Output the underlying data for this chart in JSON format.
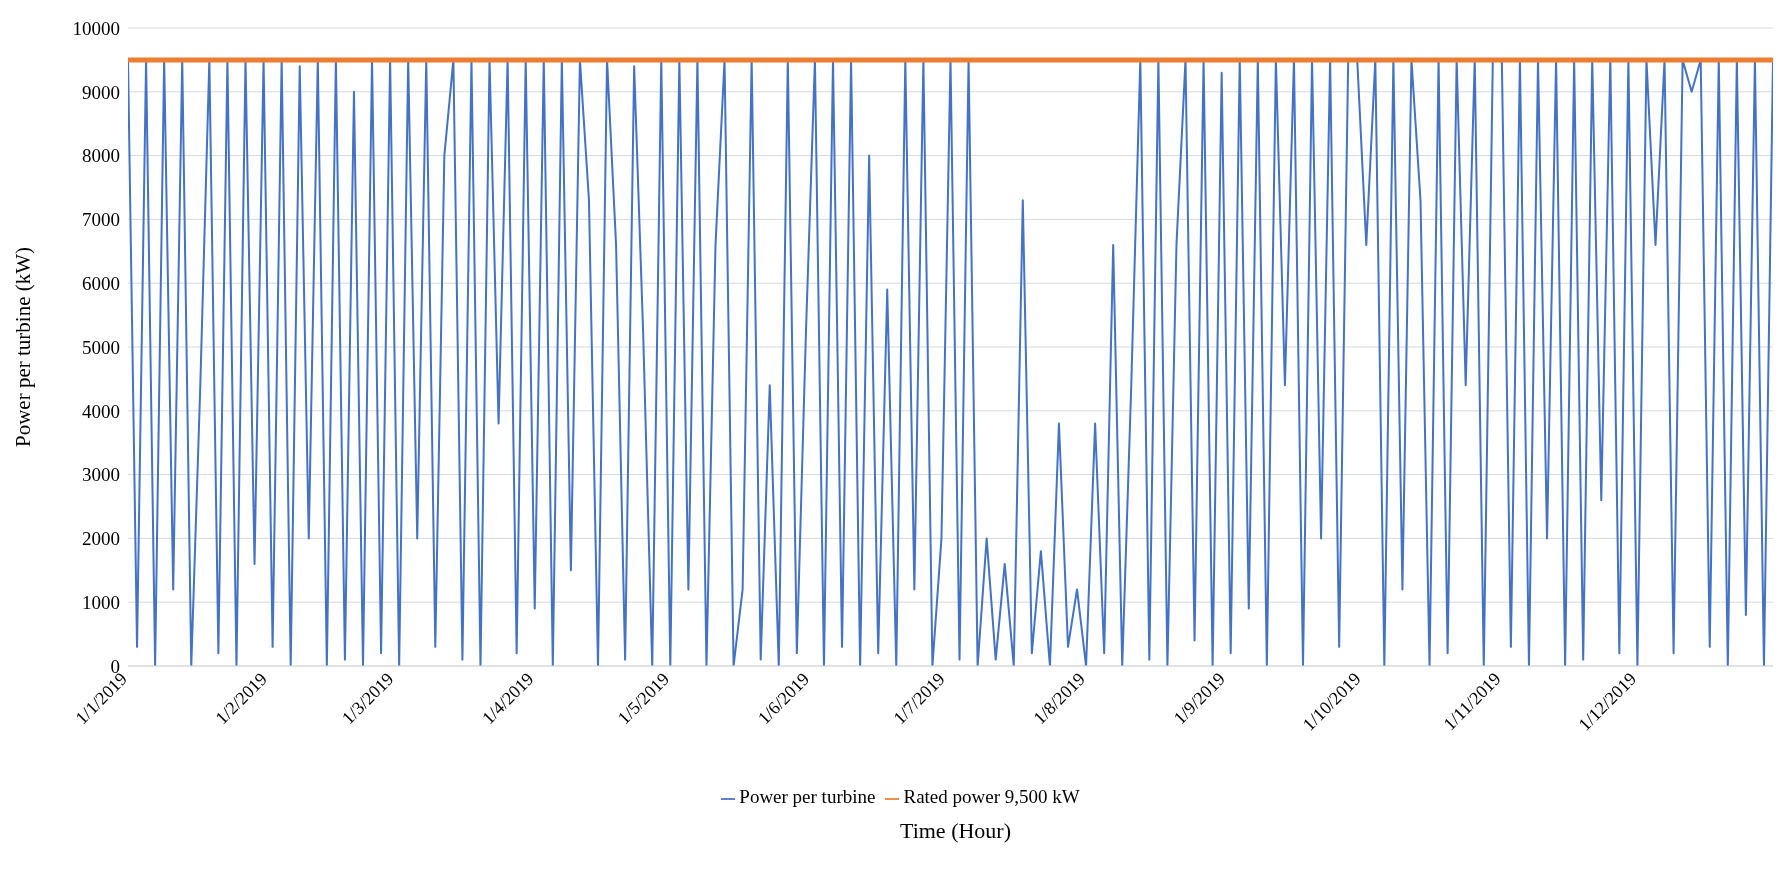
{
  "chart_data": {
    "type": "line",
    "xlabel": "Time (Hour)",
    "ylabel": "Power per turbine (kW)",
    "xlim": [
      "2019-01-01",
      "2019-12-31"
    ],
    "xticks": [
      {
        "value": "2019-01-01",
        "label": "1/1/2019"
      },
      {
        "value": "2019-02-01",
        "label": "1/2/2019"
      },
      {
        "value": "2019-03-01",
        "label": "1/3/2019"
      },
      {
        "value": "2019-04-01",
        "label": "1/4/2019"
      },
      {
        "value": "2019-05-01",
        "label": "1/5/2019"
      },
      {
        "value": "2019-06-01",
        "label": "1/6/2019"
      },
      {
        "value": "2019-07-01",
        "label": "1/7/2019"
      },
      {
        "value": "2019-08-01",
        "label": "1/8/2019"
      },
      {
        "value": "2019-09-01",
        "label": "1/9/2019"
      },
      {
        "value": "2019-10-01",
        "label": "1/10/2019"
      },
      {
        "value": "2019-11-01",
        "label": "1/11/2019"
      },
      {
        "value": "2019-12-01",
        "label": "1/12/2019"
      }
    ],
    "ylim": [
      0,
      10000
    ],
    "yticks": [
      0,
      1000,
      2000,
      3000,
      4000,
      5000,
      6000,
      7000,
      8000,
      9000,
      10000
    ],
    "grid": "y",
    "legend": "bottom",
    "marker": "none",
    "line_style": "solid",
    "series": [
      {
        "name": "Power per turbine",
        "color": "#4472c4",
        "x": [
          "2019-01-01",
          "2019-01-03",
          "2019-01-05",
          "2019-01-07",
          "2019-01-09",
          "2019-01-11",
          "2019-01-13",
          "2019-01-15",
          "2019-01-17",
          "2019-01-19",
          "2019-01-21",
          "2019-01-23",
          "2019-01-25",
          "2019-01-27",
          "2019-01-29",
          "2019-01-31",
          "2019-02-02",
          "2019-02-04",
          "2019-02-06",
          "2019-02-08",
          "2019-02-10",
          "2019-02-12",
          "2019-02-14",
          "2019-02-16",
          "2019-02-18",
          "2019-02-20",
          "2019-02-22",
          "2019-02-24",
          "2019-02-26",
          "2019-02-28",
          "2019-03-02",
          "2019-03-04",
          "2019-03-06",
          "2019-03-08",
          "2019-03-10",
          "2019-03-12",
          "2019-03-14",
          "2019-03-16",
          "2019-03-18",
          "2019-03-20",
          "2019-03-22",
          "2019-03-24",
          "2019-03-26",
          "2019-03-28",
          "2019-03-30",
          "2019-04-01",
          "2019-04-03",
          "2019-04-05",
          "2019-04-07",
          "2019-04-09",
          "2019-04-11",
          "2019-04-13",
          "2019-04-15",
          "2019-04-17",
          "2019-04-19",
          "2019-04-21",
          "2019-04-23",
          "2019-04-25",
          "2019-04-27",
          "2019-04-29",
          "2019-05-01",
          "2019-05-03",
          "2019-05-05",
          "2019-05-07",
          "2019-05-09",
          "2019-05-11",
          "2019-05-13",
          "2019-05-15",
          "2019-05-17",
          "2019-05-19",
          "2019-05-21",
          "2019-05-23",
          "2019-05-25",
          "2019-05-27",
          "2019-05-29",
          "2019-05-31",
          "2019-06-02",
          "2019-06-04",
          "2019-06-06",
          "2019-06-08",
          "2019-06-10",
          "2019-06-12",
          "2019-06-14",
          "2019-06-16",
          "2019-06-18",
          "2019-06-20",
          "2019-06-22",
          "2019-06-24",
          "2019-06-26",
          "2019-06-28",
          "2019-06-30",
          "2019-07-02",
          "2019-07-04",
          "2019-07-06",
          "2019-07-08",
          "2019-07-10",
          "2019-07-12",
          "2019-07-14",
          "2019-07-16",
          "2019-07-18",
          "2019-07-20",
          "2019-07-22",
          "2019-07-24",
          "2019-07-26",
          "2019-07-28",
          "2019-07-30",
          "2019-08-01",
          "2019-08-03",
          "2019-08-05",
          "2019-08-07",
          "2019-08-09",
          "2019-08-11",
          "2019-08-13",
          "2019-08-15",
          "2019-08-17",
          "2019-08-19",
          "2019-08-21",
          "2019-08-23",
          "2019-08-25",
          "2019-08-27",
          "2019-08-29",
          "2019-08-31",
          "2019-09-02",
          "2019-09-04",
          "2019-09-06",
          "2019-09-08",
          "2019-09-10",
          "2019-09-12",
          "2019-09-14",
          "2019-09-16",
          "2019-09-18",
          "2019-09-20",
          "2019-09-22",
          "2019-09-24",
          "2019-09-26",
          "2019-09-28",
          "2019-09-30",
          "2019-10-02",
          "2019-10-04",
          "2019-10-06",
          "2019-10-08",
          "2019-10-10",
          "2019-10-12",
          "2019-10-14",
          "2019-10-16",
          "2019-10-18",
          "2019-10-20",
          "2019-10-22",
          "2019-10-24",
          "2019-10-26",
          "2019-10-28",
          "2019-10-30",
          "2019-11-01",
          "2019-11-03",
          "2019-11-05",
          "2019-11-07",
          "2019-11-09",
          "2019-11-11",
          "2019-11-13",
          "2019-11-15",
          "2019-11-17",
          "2019-11-19",
          "2019-11-21",
          "2019-11-23",
          "2019-11-25",
          "2019-11-27",
          "2019-11-29",
          "2019-12-01",
          "2019-12-03",
          "2019-12-05",
          "2019-12-07",
          "2019-12-09",
          "2019-12-11",
          "2019-12-13",
          "2019-12-15",
          "2019-12-17",
          "2019-12-19",
          "2019-12-21",
          "2019-12-23",
          "2019-12-25",
          "2019-12-27",
          "2019-12-29",
          "2019-12-31"
        ],
        "values": [
          9500,
          300,
          9500,
          0,
          9500,
          1200,
          9500,
          0,
          4400,
          9500,
          200,
          9500,
          0,
          9500,
          1600,
          9500,
          300,
          9500,
          0,
          9400,
          2000,
          9500,
          0,
          9500,
          100,
          9000,
          0,
          9500,
          200,
          9500,
          0,
          9500,
          2000,
          9500,
          300,
          8000,
          9500,
          100,
          9500,
          0,
          9500,
          3800,
          9500,
          200,
          9500,
          900,
          9500,
          0,
          9500,
          1500,
          9500,
          7300,
          0,
          9500,
          6600,
          100,
          9400,
          5200,
          0,
          9500,
          0,
          9500,
          1200,
          9500,
          0,
          6600,
          9500,
          0,
          1200,
          9500,
          100,
          4400,
          0,
          9500,
          200,
          5200,
          9500,
          0,
          9500,
          300,
          9500,
          0,
          8000,
          200,
          5900,
          0,
          9500,
          1200,
          9500,
          0,
          2000,
          9500,
          100,
          9500,
          0,
          2000,
          100,
          1600,
          0,
          7300,
          200,
          1800,
          0,
          3800,
          300,
          1200,
          0,
          3800,
          200,
          6600,
          0,
          4400,
          9500,
          100,
          9500,
          0,
          6600,
          9500,
          400,
          9500,
          0,
          9300,
          200,
          9500,
          900,
          9500,
          0,
          9500,
          4400,
          9500,
          0,
          9500,
          2000,
          9500,
          300,
          9500,
          9500,
          6600,
          9500,
          0,
          9500,
          1200,
          9500,
          7300,
          0,
          9500,
          200,
          9500,
          4400,
          9500,
          0,
          9500,
          9500,
          300,
          9500,
          0,
          9500,
          2000,
          9500,
          0,
          9500,
          100,
          9500,
          2600,
          9500,
          200,
          9500,
          0,
          9500,
          6600,
          9500,
          200,
          9500,
          9000,
          9500,
          300,
          9500,
          0,
          9500,
          800,
          9500,
          0,
          9500
        ]
      },
      {
        "name": "Rated power 9,500 kW",
        "color": "#ed7d31",
        "x": [
          "2019-01-01",
          "2019-12-31"
        ],
        "values": [
          9500,
          9500
        ]
      }
    ]
  }
}
